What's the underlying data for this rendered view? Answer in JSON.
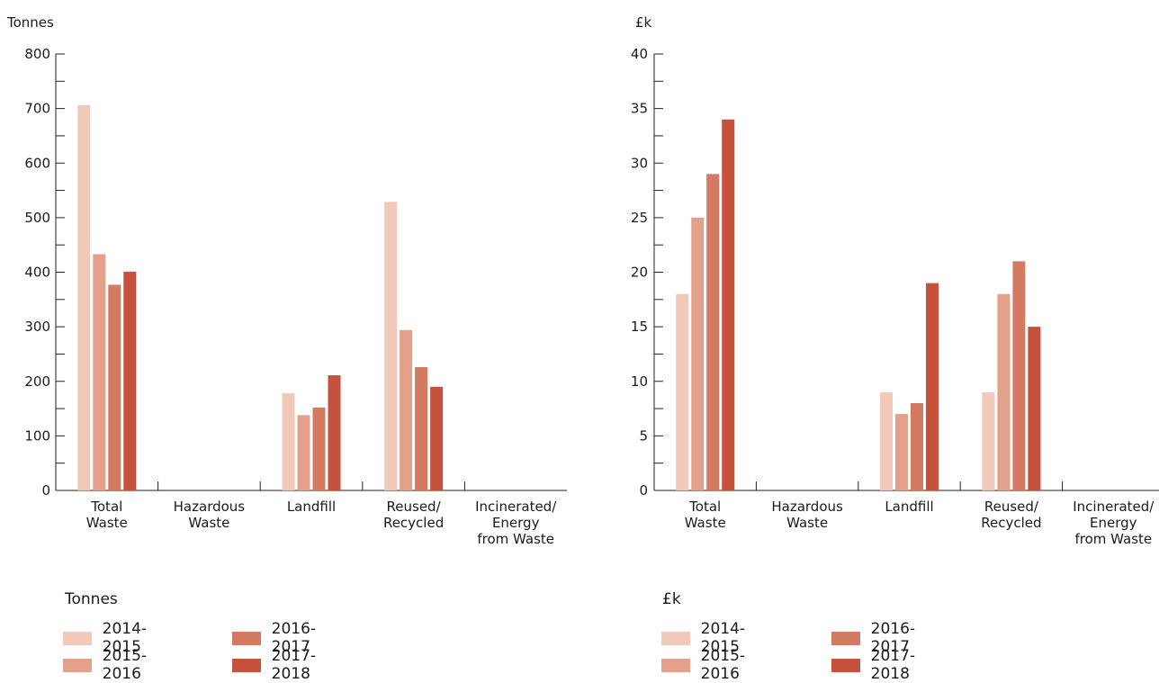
{
  "chart_data": [
    {
      "type": "bar",
      "ylabel": "Tonnes",
      "categories": [
        "Total\nWaste",
        "Hazardous\nWaste",
        "Landfill",
        "Reused/\nRecycled",
        "Incinerated/\nEnergy\nfrom Waste"
      ],
      "ylim": [
        0,
        800
      ],
      "yticks": [
        0,
        100,
        200,
        300,
        400,
        500,
        600,
        700,
        800
      ],
      "legend_title": "Tonnes",
      "series": [
        {
          "name": "2014-2015",
          "color": "#f0c9b8",
          "values": [
            706,
            0,
            178,
            529,
            0
          ]
        },
        {
          "name": "2015-2016",
          "color": "#e3a08b",
          "values": [
            433,
            0,
            138,
            294,
            0
          ]
        },
        {
          "name": "2016-2017",
          "color": "#d47a63",
          "values": [
            377,
            0,
            152,
            226,
            0
          ]
        },
        {
          "name": "2017-2018",
          "color": "#c6513d",
          "values": [
            401,
            0,
            211,
            190,
            0
          ]
        }
      ]
    },
    {
      "type": "bar",
      "ylabel": "£k",
      "categories": [
        "Total\nWaste",
        "Hazardous\nWaste",
        "Landfill",
        "Reused/\nRecycled",
        "Incinerated/\nEnergy\nfrom Waste"
      ],
      "ylim": [
        0,
        40
      ],
      "yticks": [
        0,
        5,
        10,
        15,
        20,
        25,
        30,
        35,
        40
      ],
      "legend_title": "£k",
      "series": [
        {
          "name": "2014-2015",
          "color": "#f0c9b8",
          "values": [
            18,
            0,
            9,
            9,
            0
          ]
        },
        {
          "name": "2015-2016",
          "color": "#e3a08b",
          "values": [
            25,
            0,
            7,
            18,
            0
          ]
        },
        {
          "name": "2016-2017",
          "color": "#d47a63",
          "values": [
            29,
            0,
            8,
            21,
            0
          ]
        },
        {
          "name": "2017-2018",
          "color": "#c6513d",
          "values": [
            34,
            0,
            19,
            15,
            0
          ]
        }
      ]
    }
  ]
}
